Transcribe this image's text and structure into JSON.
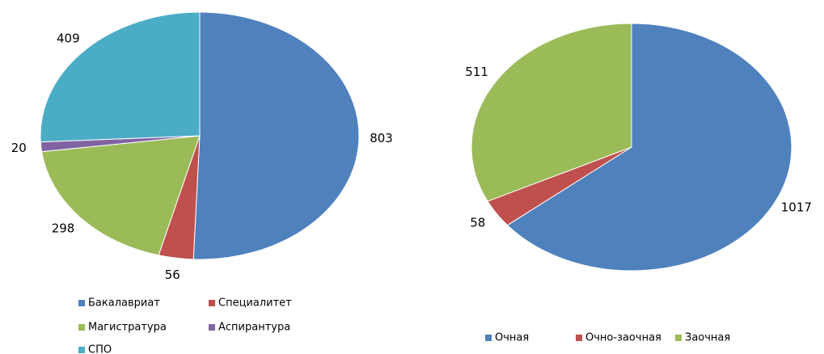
{
  "chart_data": [
    {
      "type": "pie",
      "categories": [
        "Бакалавриат",
        "Специалитет",
        "Магистратура",
        "Аспирантура",
        "СПО"
      ],
      "values": [
        803,
        56,
        298,
        20,
        409
      ],
      "colors": [
        "#4f81bd",
        "#c0504d",
        "#9bbb59",
        "#8064a2",
        "#4bacc6"
      ]
    },
    {
      "type": "pie",
      "categories": [
        "Очная",
        "Очно-заочная",
        "Заочная"
      ],
      "values": [
        1017,
        58,
        511
      ],
      "colors": [
        "#4f81bd",
        "#c0504d",
        "#9bbb59"
      ]
    }
  ]
}
